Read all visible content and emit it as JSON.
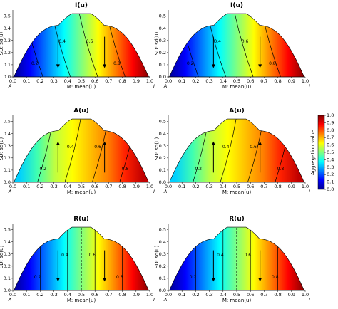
{
  "chart_data": {
    "type": "heatmap",
    "shared": {
      "xlabel": "M: mean(u)",
      "ylabel": "SD: sd(u)",
      "xlim": [
        0,
        1
      ],
      "ylim": [
        0,
        0.55
      ],
      "xticks": [
        "0.0",
        "0.1",
        "0.2",
        "0.3",
        "0.4",
        "0.5",
        "0.6",
        "0.7",
        "0.8",
        "0.9",
        "1.0"
      ],
      "yticks": [
        "0.0",
        "0.1",
        "0.2",
        "0.3",
        "0.4",
        "0.5"
      ],
      "corner_left": "A",
      "corner_right": "I",
      "colorbar": {
        "label": "Aggregation value",
        "range": [
          0,
          1
        ],
        "ticks": [
          "0.0",
          "0.1",
          "0.2",
          "0.3",
          "0.4",
          "0.5",
          "0.6",
          "0.7",
          "0.8",
          "0.9",
          "1.0"
        ],
        "colormap": [
          "#00008f",
          "#0000ff",
          "#0080ff",
          "#00ffff",
          "#80ff80",
          "#ffff00",
          "#ff8000",
          "#ff0000",
          "#800000"
        ]
      }
    },
    "panels": [
      {
        "row": 0,
        "col": 0,
        "title": "I(u)",
        "kind": "I",
        "contours": [
          "0.2",
          "0.4",
          "0.6",
          "0.8"
        ],
        "arrows": [
          {
            "x": 0.33,
            "dir": "down"
          },
          {
            "x": 0.67,
            "dir": "down"
          }
        ],
        "dashed_x": null
      },
      {
        "row": 0,
        "col": 1,
        "title": "I(u)",
        "kind": "I",
        "contours": [
          "0.2",
          "0.4",
          "0.6",
          "0.8"
        ],
        "arrows": [
          {
            "x": 0.33,
            "dir": "down"
          },
          {
            "x": 0.67,
            "dir": "down"
          }
        ],
        "dashed_x": null
      },
      {
        "row": 1,
        "col": 0,
        "title": "A(u)",
        "kind": "A",
        "contours": [
          "0.2",
          "0.4",
          "0.6",
          "0.8"
        ],
        "arrows": [
          {
            "x": 0.33,
            "dir": "up"
          },
          {
            "x": 0.67,
            "dir": "up"
          }
        ],
        "dashed_x": null
      },
      {
        "row": 1,
        "col": 1,
        "title": "A(u)",
        "kind": "A",
        "contours": [
          "0.2",
          "0.4",
          "0.6",
          "0.8"
        ],
        "arrows": [
          {
            "x": 0.33,
            "dir": "up"
          },
          {
            "x": 0.67,
            "dir": "up"
          }
        ],
        "dashed_x": null
      },
      {
        "row": 2,
        "col": 0,
        "title": "R(u)",
        "kind": "R",
        "contours": [
          "0.2",
          "0.4",
          "0.6",
          "0.8"
        ],
        "arrows": [
          {
            "x": 0.33,
            "dir": "down"
          },
          {
            "x": 0.67,
            "dir": "down"
          }
        ],
        "dashed_x": 0.5
      },
      {
        "row": 2,
        "col": 1,
        "title": "R(u)",
        "kind": "R",
        "contours": [
          "0.2",
          "0.4",
          "0.6",
          "0.8"
        ],
        "arrows": [
          {
            "x": 0.33,
            "dir": "down"
          },
          {
            "x": 0.67,
            "dir": "down"
          }
        ],
        "dashed_x": 0.5
      }
    ]
  }
}
